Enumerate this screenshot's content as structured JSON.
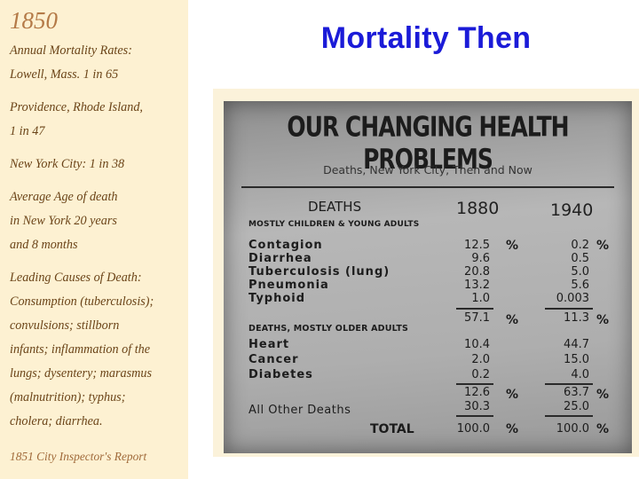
{
  "slide": {
    "title": "Mortality Then"
  },
  "sidebar": {
    "year": "1850",
    "lines": [
      "Annual Mortality Rates:",
      "Lowell, Mass. 1 in 65",
      "",
      "Providence, Rhode Island,",
      "1 in 47",
      "New York City: 1 in 38",
      "Average Age of death",
      "in New York 20 years",
      "and 8 months",
      "Leading Causes of Death:",
      "Consumption (tuberculosis);",
      "convulsions; stillborn",
      "infants; inflammation of the",
      "lungs; dysentery; marasmus",
      "(malnutrition); typhus;",
      "cholera; diarrhea."
    ],
    "source": "1851 City Inspector's Report"
  },
  "placard": {
    "heading": "OUR CHANGING HEALTH PROBLEMS",
    "subheading": "Deaths, New York City, Then and Now",
    "deaths_label": "DEATHS",
    "group1_label": "MOSTLY CHILDREN & YOUNG ADULTS",
    "col1": "1880",
    "col2": "1940",
    "pct": "%",
    "group1_rows": [
      {
        "name": "Contagion",
        "v1880": "12.5",
        "v1940": "0.2"
      },
      {
        "name": "Diarrhea",
        "v1880": "9.6",
        "v1940": "0.5"
      },
      {
        "name": "Tuberculosis (lung)",
        "v1880": "20.8",
        "v1940": "5.0"
      },
      {
        "name": "Pneumonia",
        "v1880": "13.2",
        "v1940": "5.6"
      },
      {
        "name": "Typhoid",
        "v1880": "1.0",
        "v1940": "0.003"
      }
    ],
    "group1_total": {
      "v1880": "57.1",
      "v1940": "11.3"
    },
    "group2_label": "DEATHS, MOSTLY OLDER ADULTS",
    "group2_rows": [
      {
        "name": "Heart",
        "v1880": "10.4",
        "v1940": "44.7"
      },
      {
        "name": "Cancer",
        "v1880": "2.0",
        "v1940": "15.0"
      },
      {
        "name": "Diabetes",
        "v1880": "0.2",
        "v1940": "4.0"
      }
    ],
    "group2_total": {
      "v1880": "12.6",
      "v1940": "63.7"
    },
    "other": {
      "name": "All Other Deaths",
      "v1880": "30.3",
      "v1940": "25.0"
    },
    "total": {
      "name": "TOTAL",
      "v1880": "100.0",
      "v1940": "100.0"
    }
  }
}
